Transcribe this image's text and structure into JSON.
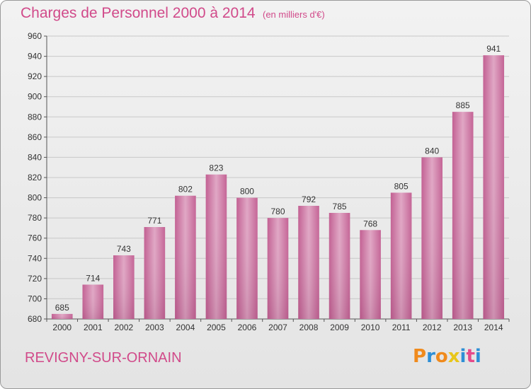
{
  "title": "Charges de Personnel 2000 à 2014",
  "subtitle": "(en milliers d'€)",
  "commune": "REVIGNY-SUR-ORNAIN",
  "logo": {
    "text": "Proxiti",
    "letters": [
      "P",
      "r",
      "o",
      "x",
      "i",
      "t",
      "i"
    ],
    "colors": [
      "#f08a1c",
      "#2e8fd6",
      "#f08a1c",
      "#e8c61a",
      "#2e8fd6",
      "#e64a8a",
      "#2e8fd6"
    ]
  },
  "colors": {
    "accent": "#d14a8a",
    "bar": "#d47aa6",
    "grid": "#c8c8c8"
  },
  "chart_data": {
    "type": "bar",
    "categories": [
      "2000",
      "2001",
      "2002",
      "2003",
      "2004",
      "2005",
      "2006",
      "2007",
      "2008",
      "2009",
      "2010",
      "2011",
      "2012",
      "2013",
      "2014"
    ],
    "values": [
      685,
      714,
      743,
      771,
      802,
      823,
      800,
      780,
      792,
      785,
      768,
      805,
      840,
      885,
      941
    ],
    "title": "Charges de Personnel 2000 à 2014",
    "xlabel": "",
    "ylabel": "",
    "ylim": [
      680,
      960
    ],
    "yticks": [
      680,
      700,
      720,
      740,
      760,
      780,
      800,
      820,
      840,
      860,
      880,
      900,
      920,
      940,
      960
    ],
    "grid": true
  }
}
